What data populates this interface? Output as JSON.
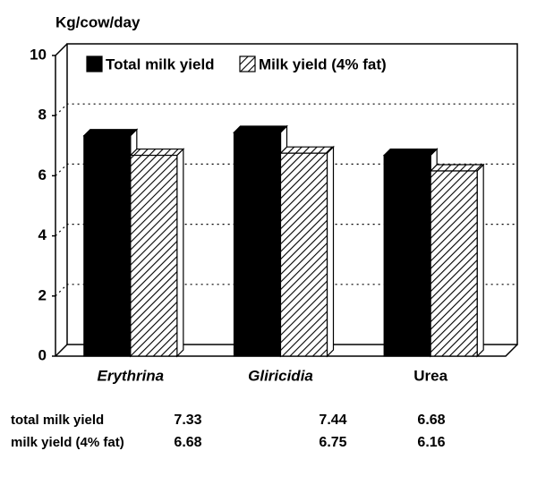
{
  "chart_data": {
    "type": "bar",
    "y_label": "Kg/cow/day",
    "categories": [
      "Erythrina",
      "Gliricidia",
      "Urea"
    ],
    "series": [
      {
        "name": "Total milk yield",
        "color": "#000000",
        "values": [
          7.33,
          7.44,
          6.68
        ]
      },
      {
        "name": "Milk yield (4% fat)",
        "color": "#000000",
        "pattern": "hatch",
        "values": [
          6.68,
          6.75,
          6.16
        ]
      }
    ],
    "ylim": [
      0,
      10
    ],
    "yticks": [
      0,
      2,
      4,
      6,
      8,
      10
    ],
    "grid": true,
    "legend": "top",
    "table": {
      "row_labels": [
        "total milk yield",
        "milk yield (4% fat)"
      ]
    }
  }
}
